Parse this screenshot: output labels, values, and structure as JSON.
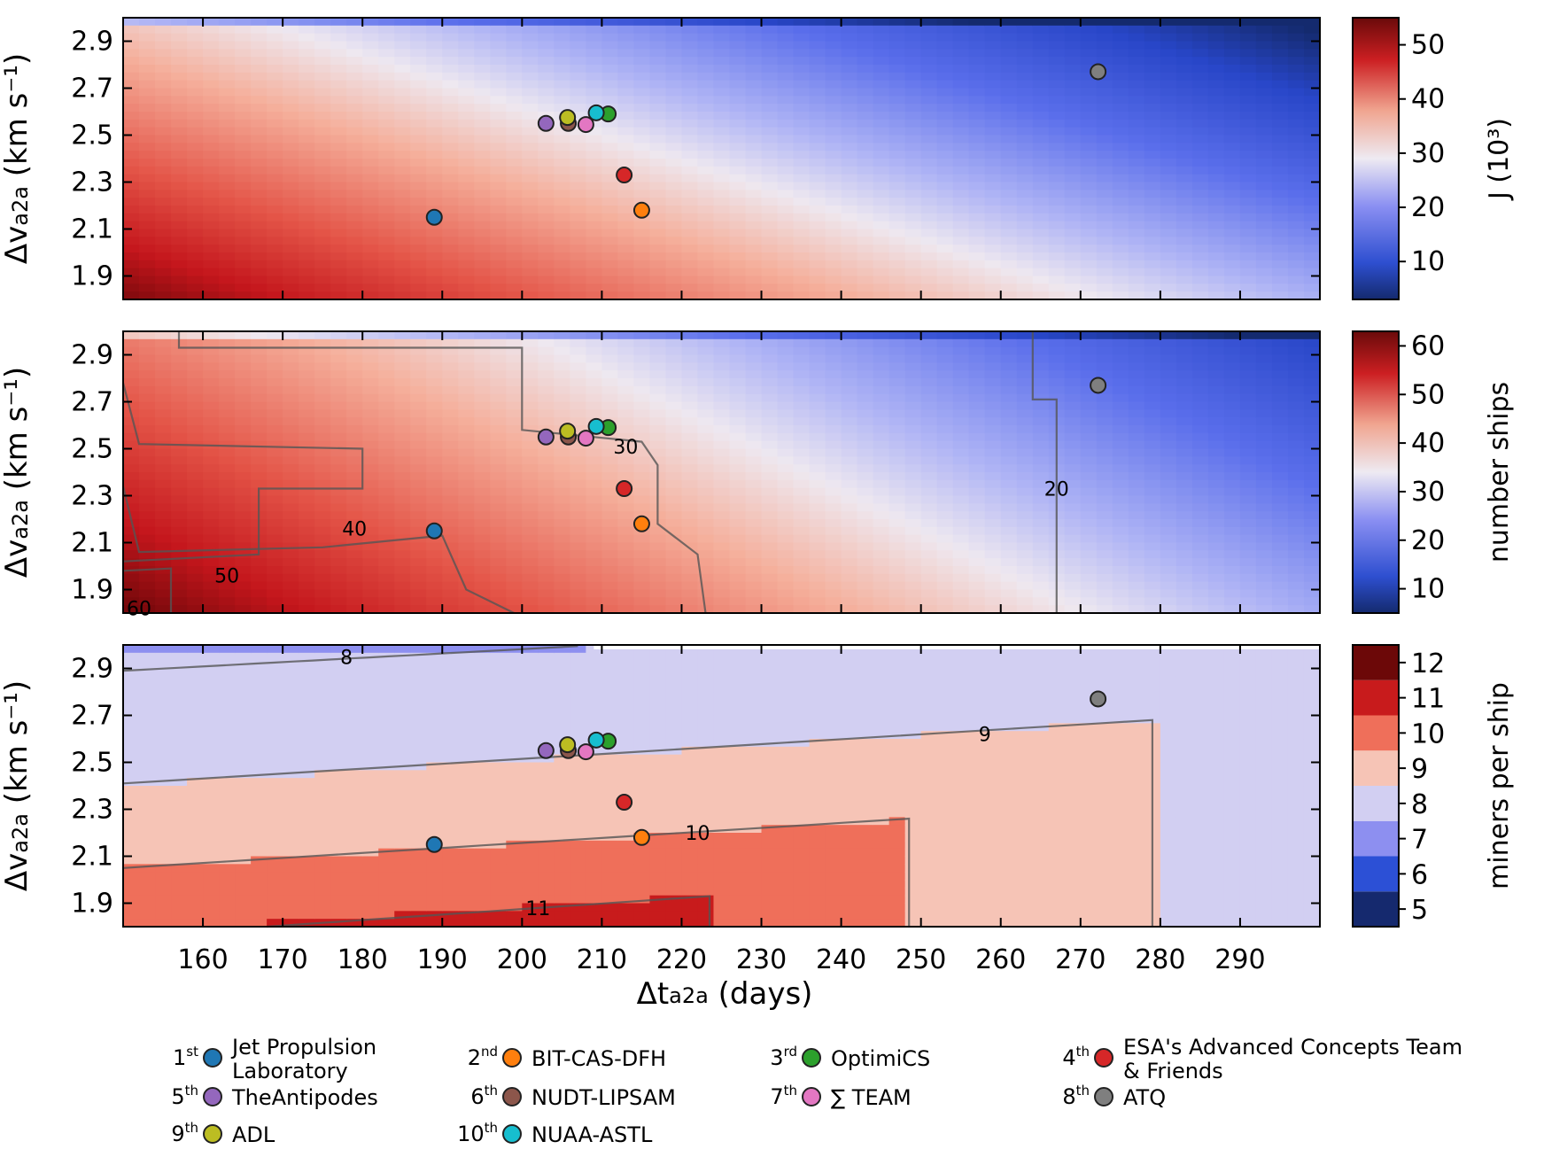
{
  "chart_data": {
    "type": "heatmap",
    "x_label": "Δt",
    "x_label_sub": "a2a",
    "x_label_unit": " (days)",
    "x_range": [
      150,
      300
    ],
    "x_ticks": [
      160,
      170,
      180,
      190,
      200,
      210,
      220,
      230,
      240,
      250,
      260,
      270,
      280,
      290
    ],
    "y_label": "Δv",
    "y_label_sub": "a2a",
    "y_label_unit": " (km s⁻¹)",
    "y_range": [
      1.8,
      3.0
    ],
    "y_ticks": [
      "1.9",
      "2.1",
      "2.3",
      "2.5",
      "2.7",
      "2.9"
    ],
    "panels": [
      {
        "name": "objective-J",
        "colorbar_label": "J (10³)",
        "colorbar_range": [
          3,
          55
        ],
        "colorbar_ticks": [
          10,
          20,
          30,
          40,
          50
        ],
        "contours": []
      },
      {
        "name": "number-ships",
        "colorbar_label": "number ships",
        "colorbar_range": [
          5,
          63
        ],
        "colorbar_ticks": [
          10,
          20,
          30,
          40,
          50,
          60
        ],
        "contours": [
          {
            "label": "20",
            "at": [
              267,
              2.33
            ]
          },
          {
            "label": "30",
            "at": [
              213,
              2.51
            ]
          },
          {
            "label": "40",
            "at": [
              179,
              2.16
            ]
          },
          {
            "label": "50",
            "at": [
              163,
              1.96
            ]
          },
          {
            "label": "60",
            "at": [
              152,
              1.82
            ]
          }
        ]
      },
      {
        "name": "miners-per-ship",
        "colorbar_label": "miners per ship",
        "colorbar_levels": [
          "5",
          "6",
          "7",
          "8",
          "9",
          "10",
          "11",
          "12"
        ],
        "contours": [
          {
            "label": "8",
            "at": [
              178,
              2.95
            ]
          },
          {
            "label": "9",
            "at": [
              258,
              2.62
            ]
          },
          {
            "label": "10",
            "at": [
              222,
              2.2
            ]
          },
          {
            "label": "11",
            "at": [
              202,
              1.88
            ]
          }
        ]
      }
    ],
    "teams": [
      {
        "rank": "1",
        "suffix": "st",
        "name": "Jet Propulsion Laboratory",
        "color": "#1f77b4",
        "dt": 189.0,
        "dv": 2.15
      },
      {
        "rank": "2",
        "suffix": "nd",
        "name": "BIT-CAS-DFH",
        "color": "#ff7f0e",
        "dt": 215.0,
        "dv": 2.18
      },
      {
        "rank": "3",
        "suffix": "rd",
        "name": "OptimiCS",
        "color": "#2ca02c",
        "dt": 210.8,
        "dv": 2.59
      },
      {
        "rank": "4",
        "suffix": "th",
        "name": "ESA's Advanced Concepts Team & Friends",
        "color": "#d62728",
        "dt": 212.8,
        "dv": 2.33
      },
      {
        "rank": "5",
        "suffix": "th",
        "name": "TheAntipodes",
        "color": "#9467bd",
        "dt": 203.0,
        "dv": 2.55
      },
      {
        "rank": "6",
        "suffix": "th",
        "name": "NUDT-LIPSAM",
        "color": "#8c564b",
        "dt": 205.8,
        "dv": 2.55
      },
      {
        "rank": "7",
        "suffix": "th",
        "name": "∑ TEAM",
        "color": "#e377c2",
        "dt": 208.0,
        "dv": 2.545
      },
      {
        "rank": "8",
        "suffix": "th",
        "name": "ATQ",
        "color": "#7f7f7f",
        "dt": 272.2,
        "dv": 2.77
      },
      {
        "rank": "9",
        "suffix": "th",
        "name": "ADL",
        "color": "#bcbd22",
        "dt": 205.7,
        "dv": 2.575
      },
      {
        "rank": "10",
        "suffix": "th",
        "name": "NUAA-ASTL",
        "color": "#17becf",
        "dt": 209.3,
        "dv": 2.595
      }
    ]
  }
}
